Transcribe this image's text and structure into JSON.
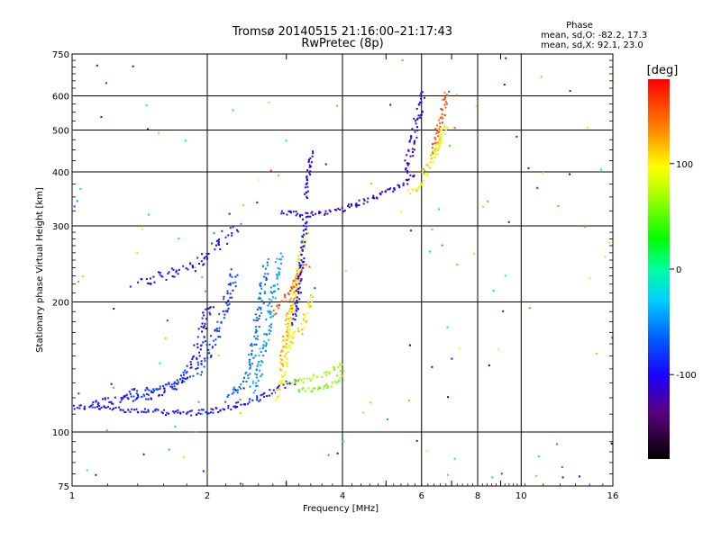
{
  "chart_data": {
    "type": "scatter",
    "title": "Tromsø 20140515 21:16:00–21:17:43",
    "subtitle": "RwPretec (8p)",
    "xlabel": "Frequency [MHz]",
    "ylabel": "Stationary phase Virtual Height [km]",
    "x_scale": "log",
    "y_scale": "log",
    "xlim": [
      1,
      16
    ],
    "ylim": [
      75,
      750
    ],
    "x_ticks": [
      1,
      2,
      4,
      6,
      8,
      10,
      16
    ],
    "x_minor_ticks": [
      3,
      5,
      7,
      9
    ],
    "y_ticks": [
      75,
      100,
      200,
      300,
      400,
      500,
      600,
      750
    ],
    "grid": true,
    "phase_box": {
      "title": "Phase",
      "line_o": "mean, sd,O: -82.2, 17.3",
      "line_x": "mean, sd,X:  92.1, 23.0"
    },
    "colorbar": {
      "label": "[deg]",
      "range": [
        -180,
        180
      ],
      "ticks": [
        100,
        0,
        -100
      ]
    },
    "traces": [
      {
        "x": [
          1.0,
          1.2,
          1.5,
          1.8,
          2.0,
          2.2,
          2.4,
          2.6,
          2.8,
          3.0,
          3.2
        ],
        "y": [
          115,
          114,
          112,
          111,
          112,
          114,
          117,
          120,
          125,
          130,
          132
        ],
        "phase": -95,
        "spread": 3
      },
      {
        "x": [
          1.1,
          1.3,
          1.5,
          1.7,
          1.85,
          1.95,
          2.0
        ],
        "y": [
          118,
          120,
          122,
          130,
          145,
          170,
          200
        ],
        "phase": -95,
        "spread": 5
      },
      {
        "x": [
          1.3,
          1.5,
          1.7,
          1.9,
          2.05,
          2.2,
          2.3
        ],
        "y": [
          122,
          125,
          130,
          140,
          160,
          200,
          240
        ],
        "phase": -80,
        "spread": 5
      },
      {
        "x": [
          1.4,
          1.6,
          1.8,
          2.0,
          2.15,
          2.3
        ],
        "y": [
          225,
          230,
          240,
          255,
          280,
          300
        ],
        "phase": -100,
        "spread": 6
      },
      {
        "x": [
          2.2,
          2.4,
          2.5,
          2.6,
          2.7
        ],
        "y": [
          120,
          130,
          150,
          190,
          250
        ],
        "phase": -60,
        "spread": 4
      },
      {
        "x": [
          2.5,
          2.6,
          2.7,
          2.8,
          2.9
        ],
        "y": [
          125,
          140,
          170,
          210,
          260
        ],
        "phase": -45,
        "spread": 4
      },
      {
        "x": [
          2.8,
          2.9,
          3.0,
          3.1
        ],
        "y": [
          120,
          130,
          150,
          175
        ],
        "phase": 100,
        "spread": 3
      },
      {
        "x": [
          2.9,
          3.0,
          3.1,
          3.2
        ],
        "y": [
          140,
          180,
          210,
          240
        ],
        "phase": 120,
        "spread": 3
      },
      {
        "x": [
          3.0,
          3.1,
          3.2,
          3.3
        ],
        "y": [
          160,
          200,
          250,
          290
        ],
        "phase": 100,
        "spread": 3
      },
      {
        "x": [
          3.0,
          3.2,
          3.4,
          3.6,
          3.8,
          4.0
        ],
        "y": [
          130,
          132,
          134,
          137,
          141,
          146
        ],
        "phase": 70,
        "spread": 3
      },
      {
        "x": [
          3.2,
          3.5,
          3.8,
          4.0
        ],
        "y": [
          125,
          127,
          130,
          140
        ],
        "phase": 60,
        "spread": 3
      },
      {
        "x": [
          2.8,
          3.0,
          3.2,
          3.3
        ],
        "y": [
          190,
          210,
          230,
          250
        ],
        "phase": 150,
        "spread": 3
      },
      {
        "x": [
          3.2,
          3.3,
          3.4
        ],
        "y": [
          170,
          190,
          210
        ],
        "phase": 110,
        "spread": 3
      },
      {
        "x": [
          3.1,
          3.2,
          3.25,
          3.3
        ],
        "y": [
          180,
          220,
          270,
          320
        ],
        "phase": -100,
        "spread": 3
      },
      {
        "x": [
          2.9,
          3.1,
          3.3,
          3.5,
          3.8,
          4.0,
          4.5,
          5.0,
          5.5,
          5.8
        ],
        "y": [
          325,
          323,
          320,
          321,
          325,
          330,
          345,
          360,
          380,
          400
        ],
        "phase": -110,
        "spread": 3
      },
      {
        "x": [
          3.3,
          3.35,
          3.4
        ],
        "y": [
          350,
          400,
          450
        ],
        "phase": -110,
        "spread": 2
      },
      {
        "x": [
          5.5,
          5.6,
          5.7,
          5.8,
          5.9,
          6.0
        ],
        "y": [
          400,
          430,
          470,
          520,
          560,
          620
        ],
        "phase": -110,
        "spread": 4
      },
      {
        "x": [
          5.6,
          5.8,
          6.0,
          6.2
        ],
        "y": [
          360,
          365,
          380,
          400
        ],
        "phase": 100,
        "spread": 3
      },
      {
        "x": [
          6.0,
          6.3,
          6.5,
          6.7
        ],
        "y": [
          400,
          430,
          470,
          520
        ],
        "phase": 110,
        "spread": 3
      },
      {
        "x": [
          6.3,
          6.5,
          6.7,
          6.8
        ],
        "y": [
          450,
          500,
          560,
          620
        ],
        "phase": 150,
        "spread": 3
      },
      {
        "x": [
          6.4,
          6.6,
          6.8
        ],
        "y": [
          440,
          480,
          510
        ],
        "phase": 95,
        "spread": 3
      }
    ]
  }
}
